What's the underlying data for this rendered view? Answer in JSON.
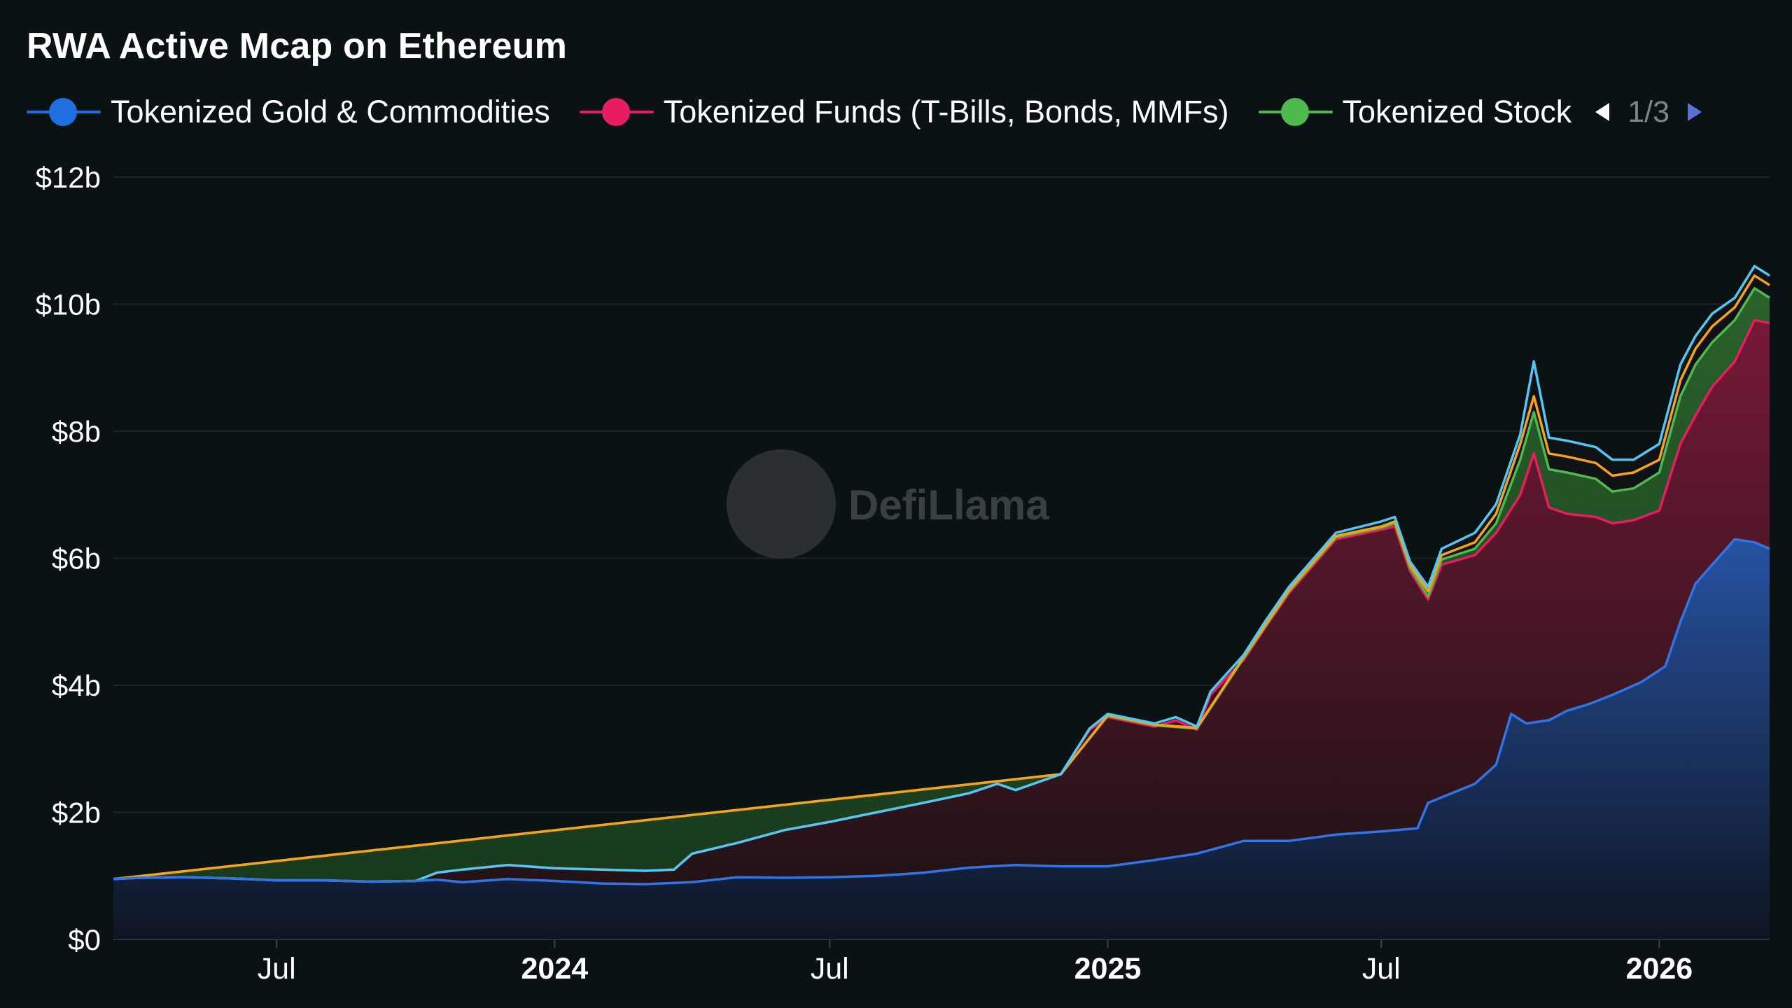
{
  "chart_data": {
    "type": "area",
    "title": "RWA Active Mcap on Ethereum",
    "watermark": "DefiLlama",
    "legend": {
      "placement": "top-left",
      "page": "1/3",
      "items": [
        {
          "label": "Tokenized Gold & Commodities",
          "color": "#1f6fe0"
        },
        {
          "label": "Tokenized Funds (T-Bills, Bonds, MMFs)",
          "color": "#e81d5f"
        },
        {
          "label": "Tokenized Stock",
          "color": "#4fb84f"
        }
      ]
    },
    "y_axis": {
      "min": 0,
      "max": 12,
      "ticks": [
        {
          "value": 0,
          "label": "$0"
        },
        {
          "value": 2,
          "label": "$2b"
        },
        {
          "value": 4,
          "label": "$4b"
        },
        {
          "value": 6,
          "label": "$6b"
        },
        {
          "value": 8,
          "label": "$8b"
        },
        {
          "value": 10,
          "label": "$10b"
        },
        {
          "value": 12,
          "label": "$12b"
        }
      ]
    },
    "x_axis": {
      "min": "2023-03-15",
      "max": "2026-03-15",
      "ticks": [
        {
          "date": "2023-07-01",
          "label": "Jul",
          "major": false
        },
        {
          "date": "2024-01-01",
          "label": "2024",
          "major": true
        },
        {
          "date": "2024-07-01",
          "label": "Jul",
          "major": false
        },
        {
          "date": "2025-01-01",
          "label": "2025",
          "major": true
        },
        {
          "date": "2025-07-01",
          "label": "Jul",
          "major": false
        },
        {
          "date": "2026-01-01",
          "label": "2026",
          "major": true
        }
      ]
    },
    "grid": "horizontal",
    "series": [
      {
        "name": "Tokenized Gold & Commodities",
        "color": "#2f75e8",
        "points": [
          [
            "2023-03-15",
            0.95
          ],
          [
            "2023-04-01",
            0.97
          ],
          [
            "2023-05-01",
            0.98
          ],
          [
            "2023-06-01",
            0.96
          ],
          [
            "2023-07-01",
            0.93
          ],
          [
            "2023-08-01",
            0.93
          ],
          [
            "2023-09-01",
            0.91
          ],
          [
            "2023-10-01",
            0.92
          ],
          [
            "2023-10-15",
            0.94
          ],
          [
            "2023-11-01",
            0.9
          ],
          [
            "2023-12-01",
            0.95
          ],
          [
            "2024-01-01",
            0.92
          ],
          [
            "2024-02-01",
            0.88
          ],
          [
            "2024-03-01",
            0.87
          ],
          [
            "2024-04-01",
            0.9
          ],
          [
            "2024-05-01",
            0.98
          ],
          [
            "2024-06-01",
            0.97
          ],
          [
            "2024-07-01",
            0.98
          ],
          [
            "2024-08-01",
            1.0
          ],
          [
            "2024-09-01",
            1.05
          ],
          [
            "2024-10-01",
            1.13
          ],
          [
            "2024-11-01",
            1.17
          ],
          [
            "2024-12-01",
            1.15
          ],
          [
            "2025-01-01",
            1.15
          ],
          [
            "2025-02-01",
            1.25
          ],
          [
            "2025-03-01",
            1.35
          ],
          [
            "2025-04-01",
            1.55
          ],
          [
            "2025-05-01",
            1.55
          ],
          [
            "2025-06-01",
            1.65
          ],
          [
            "2025-07-01",
            1.7
          ],
          [
            "2025-07-25",
            1.75
          ],
          [
            "2025-08-01",
            2.15
          ],
          [
            "2025-09-01",
            2.45
          ],
          [
            "2025-09-15",
            2.75
          ],
          [
            "2025-09-25",
            3.55
          ],
          [
            "2025-10-05",
            3.4
          ],
          [
            "2025-10-20",
            3.45
          ],
          [
            "2025-11-01",
            3.6
          ],
          [
            "2025-11-15",
            3.7
          ],
          [
            "2025-12-01",
            3.85
          ],
          [
            "2025-12-20",
            4.05
          ],
          [
            "2026-01-05",
            4.3
          ],
          [
            "2026-01-15",
            5.0
          ],
          [
            "2026-01-25",
            5.6
          ],
          [
            "2026-02-05",
            5.9
          ],
          [
            "2026-02-20",
            6.3
          ],
          [
            "2026-03-05",
            6.25
          ],
          [
            "2026-03-15",
            6.15
          ]
        ]
      },
      {
        "name": "Tokenized Funds (T-Bills, Bonds, MMFs)",
        "color": "#e81d5f",
        "points": [
          [
            "2023-03-15",
            0.95
          ],
          [
            "2023-04-01",
            0.97
          ],
          [
            "2023-05-01",
            0.98
          ],
          [
            "2023-06-01",
            0.96
          ],
          [
            "2023-07-01",
            0.93
          ],
          [
            "2023-08-01",
            0.93
          ],
          [
            "2023-09-01",
            0.91
          ],
          [
            "2023-10-01",
            0.92
          ],
          [
            "2023-10-15",
            1.05
          ],
          [
            "2023-11-01",
            1.1
          ],
          [
            "2023-12-01",
            1.17
          ],
          [
            "2024-01-01",
            1.12
          ],
          [
            "2024-02-01",
            1.1
          ],
          [
            "2024-03-01",
            1.08
          ],
          [
            "2024-03-20",
            1.1
          ],
          [
            "2024-04-01",
            1.35
          ],
          [
            "2024-05-01",
            1.52
          ],
          [
            "2024-06-01",
            1.72
          ],
          [
            "2024-07-01",
            1.85
          ],
          [
            "2024-08-01",
            2.0
          ],
          [
            "2024-09-01",
            2.15
          ],
          [
            "2024-10-01",
            2.3
          ],
          [
            "2024-10-20",
            2.45
          ],
          [
            "2024-11-01",
            2.35
          ],
          [
            "2024-12-01",
            2.6
          ],
          [
            "2024-12-20",
            3.3
          ],
          [
            "2025-01-01",
            3.5
          ],
          [
            "2025-02-01",
            3.35
          ],
          [
            "2025-02-15",
            3.45
          ],
          [
            "2025-03-01",
            3.3
          ],
          [
            "2025-03-10",
            3.85
          ],
          [
            "2025-04-01",
            4.4
          ],
          [
            "2025-04-15",
            4.9
          ],
          [
            "2025-05-01",
            5.45
          ],
          [
            "2025-06-01",
            6.3
          ],
          [
            "2025-07-01",
            6.45
          ],
          [
            "2025-07-10",
            6.5
          ],
          [
            "2025-07-20",
            5.8
          ],
          [
            "2025-08-01",
            5.35
          ],
          [
            "2025-08-10",
            5.9
          ],
          [
            "2025-09-01",
            6.05
          ],
          [
            "2025-09-15",
            6.4
          ],
          [
            "2025-10-01",
            7.0
          ],
          [
            "2025-10-10",
            7.65
          ],
          [
            "2025-10-20",
            6.8
          ],
          [
            "2025-11-01",
            6.7
          ],
          [
            "2025-11-20",
            6.65
          ],
          [
            "2025-12-01",
            6.55
          ],
          [
            "2025-12-15",
            6.6
          ],
          [
            "2026-01-01",
            6.75
          ],
          [
            "2026-01-15",
            7.8
          ],
          [
            "2026-01-25",
            8.25
          ],
          [
            "2026-02-05",
            8.7
          ],
          [
            "2026-02-20",
            9.1
          ],
          [
            "2026-03-05",
            9.75
          ],
          [
            "2026-03-15",
            9.7
          ]
        ]
      },
      {
        "name": "Tokenized Stock",
        "color": "#4fb84f",
        "points": [
          [
            "2023-03-15",
            0.95
          ],
          [
            "2024-12-01",
            2.6
          ],
          [
            "2025-01-01",
            3.52
          ],
          [
            "2025-02-01",
            3.37
          ],
          [
            "2025-03-01",
            3.32
          ],
          [
            "2025-04-01",
            4.43
          ],
          [
            "2025-05-01",
            5.48
          ],
          [
            "2025-06-01",
            6.33
          ],
          [
            "2025-07-01",
            6.48
          ],
          [
            "2025-07-10",
            6.55
          ],
          [
            "2025-07-20",
            5.85
          ],
          [
            "2025-08-01",
            5.4
          ],
          [
            "2025-08-10",
            5.98
          ],
          [
            "2025-09-01",
            6.15
          ],
          [
            "2025-09-15",
            6.55
          ],
          [
            "2025-10-01",
            7.55
          ],
          [
            "2025-10-10",
            8.3
          ],
          [
            "2025-10-20",
            7.4
          ],
          [
            "2025-11-01",
            7.35
          ],
          [
            "2025-11-20",
            7.25
          ],
          [
            "2025-12-01",
            7.05
          ],
          [
            "2025-12-15",
            7.1
          ],
          [
            "2026-01-01",
            7.35
          ],
          [
            "2026-01-15",
            8.55
          ],
          [
            "2026-01-25",
            9.05
          ],
          [
            "2026-02-05",
            9.4
          ],
          [
            "2026-02-20",
            9.75
          ],
          [
            "2026-03-05",
            10.25
          ],
          [
            "2026-03-15",
            10.1
          ]
        ]
      },
      {
        "color": "#f7a21b",
        "points": [
          [
            "2023-03-15",
            0.95
          ],
          [
            "2024-12-01",
            2.6
          ],
          [
            "2025-01-01",
            3.53
          ],
          [
            "2025-02-01",
            3.38
          ],
          [
            "2025-03-01",
            3.33
          ],
          [
            "2025-04-01",
            4.45
          ],
          [
            "2025-05-01",
            5.5
          ],
          [
            "2025-06-01",
            6.35
          ],
          [
            "2025-07-01",
            6.5
          ],
          [
            "2025-07-10",
            6.58
          ],
          [
            "2025-07-20",
            5.9
          ],
          [
            "2025-08-01",
            5.48
          ],
          [
            "2025-08-10",
            6.05
          ],
          [
            "2025-09-01",
            6.25
          ],
          [
            "2025-09-15",
            6.7
          ],
          [
            "2025-10-01",
            7.8
          ],
          [
            "2025-10-10",
            8.55
          ],
          [
            "2025-10-20",
            7.65
          ],
          [
            "2025-11-01",
            7.6
          ],
          [
            "2025-11-20",
            7.5
          ],
          [
            "2025-12-01",
            7.3
          ],
          [
            "2025-12-15",
            7.35
          ],
          [
            "2026-01-01",
            7.55
          ],
          [
            "2026-01-15",
            8.8
          ],
          [
            "2026-01-25",
            9.3
          ],
          [
            "2026-02-05",
            9.65
          ],
          [
            "2026-02-20",
            9.95
          ],
          [
            "2026-03-05",
            10.45
          ],
          [
            "2026-03-15",
            10.3
          ]
        ]
      },
      {
        "color": "#52c7f2",
        "points": [
          [
            "2023-03-15",
            0.95
          ],
          [
            "2023-04-01",
            0.97
          ],
          [
            "2023-05-01",
            0.98
          ],
          [
            "2023-06-01",
            0.96
          ],
          [
            "2023-07-01",
            0.93
          ],
          [
            "2023-08-01",
            0.93
          ],
          [
            "2023-09-01",
            0.91
          ],
          [
            "2023-10-01",
            0.92
          ],
          [
            "2023-10-15",
            1.05
          ],
          [
            "2023-11-01",
            1.1
          ],
          [
            "2023-12-01",
            1.17
          ],
          [
            "2024-01-01",
            1.12
          ],
          [
            "2024-02-01",
            1.1
          ],
          [
            "2024-03-01",
            1.08
          ],
          [
            "2024-03-20",
            1.1
          ],
          [
            "2024-04-01",
            1.35
          ],
          [
            "2024-05-01",
            1.52
          ],
          [
            "2024-06-01",
            1.72
          ],
          [
            "2024-07-01",
            1.85
          ],
          [
            "2024-08-01",
            2.0
          ],
          [
            "2024-09-01",
            2.15
          ],
          [
            "2024-10-01",
            2.3
          ],
          [
            "2024-10-20",
            2.45
          ],
          [
            "2024-11-01",
            2.35
          ],
          [
            "2024-12-01",
            2.6
          ],
          [
            "2024-12-20",
            3.32
          ],
          [
            "2025-01-01",
            3.55
          ],
          [
            "2025-02-01",
            3.4
          ],
          [
            "2025-02-15",
            3.5
          ],
          [
            "2025-03-01",
            3.35
          ],
          [
            "2025-03-10",
            3.9
          ],
          [
            "2025-04-01",
            4.48
          ],
          [
            "2025-04-15",
            5.0
          ],
          [
            "2025-05-01",
            5.55
          ],
          [
            "2025-06-01",
            6.4
          ],
          [
            "2025-07-01",
            6.58
          ],
          [
            "2025-07-10",
            6.65
          ],
          [
            "2025-07-20",
            5.95
          ],
          [
            "2025-08-01",
            5.55
          ],
          [
            "2025-08-10",
            6.15
          ],
          [
            "2025-09-01",
            6.4
          ],
          [
            "2025-09-15",
            6.85
          ],
          [
            "2025-10-01",
            7.95
          ],
          [
            "2025-10-10",
            9.1
          ],
          [
            "2025-10-20",
            7.9
          ],
          [
            "2025-11-01",
            7.85
          ],
          [
            "2025-11-20",
            7.75
          ],
          [
            "2025-12-01",
            7.55
          ],
          [
            "2025-12-15",
            7.55
          ],
          [
            "2026-01-01",
            7.8
          ],
          [
            "2026-01-15",
            9.05
          ],
          [
            "2026-01-25",
            9.5
          ],
          [
            "2026-02-05",
            9.85
          ],
          [
            "2026-02-20",
            10.1
          ],
          [
            "2026-03-05",
            10.6
          ],
          [
            "2026-03-15",
            10.45
          ]
        ]
      }
    ]
  }
}
